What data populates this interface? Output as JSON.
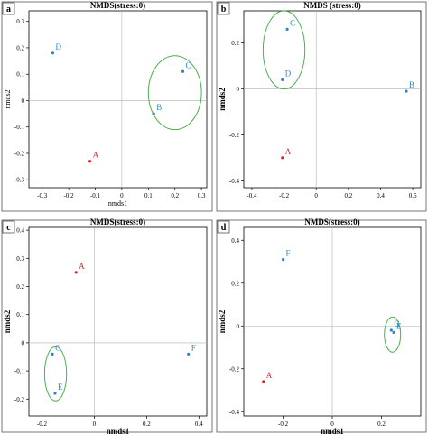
{
  "colors": {
    "red": "#d62728",
    "blue": "#2e86c9",
    "ellipse": "#4caf50",
    "axis": "#000000",
    "zero": "#b0b0b0"
  },
  "chart_data": [
    {
      "panel": "a",
      "type": "scatter",
      "title": "NMDS(stress:0)",
      "xlabel": "nmds1",
      "ylabel": "nmds2",
      "xlim": [
        -0.35,
        0.32
      ],
      "ylim": [
        -0.33,
        0.34
      ],
      "xticks": [
        -0.3,
        -0.2,
        -0.1,
        0,
        0.1,
        0.2,
        0.3
      ],
      "yticks": [
        -0.3,
        -0.2,
        -0.1,
        0,
        0.1,
        0.2,
        0.3
      ],
      "grid": false,
      "zero_lines": true,
      "points": [
        {
          "label": "A",
          "x": -0.12,
          "y": -0.23,
          "color": "red"
        },
        {
          "label": "B",
          "x": 0.12,
          "y": -0.05,
          "color": "blue"
        },
        {
          "label": "C",
          "x": 0.23,
          "y": 0.11,
          "color": "blue"
        },
        {
          "label": "D",
          "x": -0.26,
          "y": 0.18,
          "color": "blue"
        }
      ],
      "ellipses": [
        {
          "cx": 0.2,
          "cy": 0.03,
          "rx": 0.1,
          "ry": 0.14,
          "rotate": 0
        }
      ]
    },
    {
      "panel": "b",
      "type": "scatter",
      "title": "NMDS (stress:0)",
      "xlabel": "",
      "ylabel": "nmds2",
      "xlim": [
        -0.45,
        0.65
      ],
      "ylim": [
        -0.43,
        0.34
      ],
      "xticks": [
        -0.4,
        -0.2,
        0,
        0.2,
        0.4,
        0.6
      ],
      "yticks": [
        -0.4,
        -0.2,
        0,
        0.2
      ],
      "grid": false,
      "zero_lines": true,
      "points": [
        {
          "label": "A",
          "x": -0.21,
          "y": -0.3,
          "color": "red"
        },
        {
          "label": "B",
          "x": 0.56,
          "y": -0.01,
          "color": "blue"
        },
        {
          "label": "C",
          "x": -0.18,
          "y": 0.26,
          "color": "blue"
        },
        {
          "label": "D",
          "x": -0.21,
          "y": 0.04,
          "color": "blue"
        }
      ],
      "ellipses": [
        {
          "cx": -0.2,
          "cy": 0.17,
          "rx": 0.13,
          "ry": 0.17,
          "rotate": 0
        }
      ]
    },
    {
      "panel": "c",
      "type": "scatter",
      "title": "NMDS(stress:0)",
      "xlabel": "nmds1",
      "ylabel": "nmds2",
      "xlim": [
        -0.25,
        0.43
      ],
      "ylim": [
        -0.26,
        0.41
      ],
      "xticks": [
        -0.2,
        0,
        0.2,
        0.4
      ],
      "yticks": [
        -0.2,
        -0.1,
        0,
        0.1,
        0.2,
        0.3,
        0.4
      ],
      "grid": false,
      "zero_lines": true,
      "points": [
        {
          "label": "A",
          "x": -0.07,
          "y": 0.25,
          "color": "red"
        },
        {
          "label": "E",
          "x": -0.15,
          "y": -0.18,
          "color": "blue"
        },
        {
          "label": "F",
          "x": 0.36,
          "y": -0.04,
          "color": "blue"
        },
        {
          "label": "G",
          "x": -0.16,
          "y": -0.04,
          "color": "blue"
        }
      ],
      "ellipses": [
        {
          "cx": -0.148,
          "cy": -0.11,
          "rx": 0.042,
          "ry": 0.096,
          "rotate": 0
        }
      ]
    },
    {
      "panel": "d",
      "type": "scatter",
      "title": "NMDS(stress:0)",
      "xlabel": "nmds1",
      "ylabel": "nmds2",
      "xlim": [
        -0.36,
        0.36
      ],
      "ylim": [
        -0.42,
        0.46
      ],
      "xticks": [
        -0.2,
        0,
        0.2
      ],
      "yticks": [
        -0.4,
        -0.2,
        0,
        0.2,
        0.4
      ],
      "grid": false,
      "zero_lines": true,
      "points": [
        {
          "label": "A",
          "x": -0.28,
          "y": -0.26,
          "color": "red"
        },
        {
          "label": "E",
          "x": 0.25,
          "y": -0.03,
          "color": "blue"
        },
        {
          "label": "F",
          "x": -0.2,
          "y": 0.31,
          "color": "blue"
        },
        {
          "label": "G",
          "x": 0.24,
          "y": -0.02,
          "color": "blue"
        }
      ],
      "ellipses": [
        {
          "cx": 0.245,
          "cy": -0.04,
          "rx": 0.033,
          "ry": 0.082,
          "rotate": 0
        }
      ]
    }
  ]
}
